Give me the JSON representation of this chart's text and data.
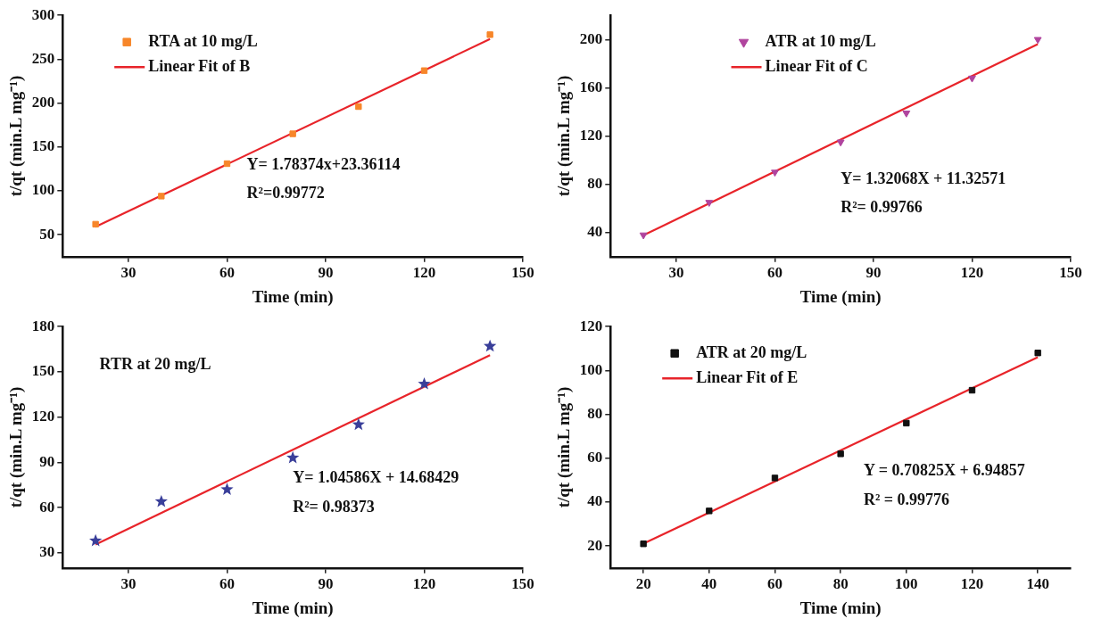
{
  "chart_data": [
    {
      "type": "scatter",
      "xlabel": "Time (min)",
      "ylabel": "t/qt (min.L mg⁻¹)",
      "xlim": [
        10,
        150
      ],
      "xticks": [
        30,
        60,
        90,
        120,
        150
      ],
      "ylim": [
        25,
        300
      ],
      "yticks": [
        50,
        100,
        150,
        200,
        250,
        300
      ],
      "grid": false,
      "legend": "top left",
      "series": [
        {
          "name": "RTA at 10 mg/L",
          "marker": "square",
          "color": "#f7862a",
          "x": [
            20,
            40,
            60,
            80,
            100,
            120,
            140
          ],
          "values": [
            62,
            94,
            131,
            165,
            196,
            237,
            278
          ]
        },
        {
          "name": "Linear Fit of B",
          "type": "line",
          "marker": "none",
          "line_style": "solid",
          "color": "#e8242a",
          "x": [
            20,
            140
          ],
          "values": [
            59,
            273
          ]
        }
      ],
      "annotations": [
        "Y= 1.78374x+23.36114",
        "R²=0.99772"
      ]
    },
    {
      "type": "scatter",
      "xlabel": "Time (min)",
      "ylabel": "t/qt (min.L mg⁻¹)",
      "xlim": [
        10,
        150
      ],
      "xticks": [
        30,
        60,
        90,
        120,
        150
      ],
      "ylim": [
        20,
        220
      ],
      "yticks": [
        40,
        80,
        120,
        160,
        200
      ],
      "grid": false,
      "legend": "top",
      "series": [
        {
          "name": "ATR at 10 mg/L",
          "marker": "triangle",
          "color": "#b0449e",
          "x": [
            20,
            40,
            60,
            80,
            100,
            120,
            140
          ],
          "values": [
            38,
            65,
            90,
            115,
            139,
            168,
            200
          ]
        },
        {
          "name": "Linear Fit of C",
          "type": "line",
          "marker": "none",
          "line_style": "solid",
          "color": "#e8242a",
          "x": [
            20,
            140
          ],
          "values": [
            37.7,
            196.2
          ]
        }
      ],
      "annotations": [
        "Y= 1.32068X + 11.32571",
        "R²= 0.99766"
      ]
    },
    {
      "type": "scatter",
      "xlabel": "Time (min)",
      "ylabel": "t/qt (min.L mg⁻¹)",
      "xlim": [
        10,
        150
      ],
      "xticks": [
        30,
        60,
        90,
        120,
        150
      ],
      "ylim": [
        20,
        180
      ],
      "yticks": [
        30,
        60,
        90,
        120,
        150,
        180
      ],
      "grid": false,
      "series": [
        {
          "marker": "star",
          "color": "#3a3f9a",
          "x": [
            20,
            40,
            60,
            80,
            100,
            120,
            140
          ],
          "values": [
            38,
            64,
            72,
            93,
            115,
            142,
            167
          ]
        },
        {
          "type": "line",
          "marker": "none",
          "line_style": "solid",
          "color": "#e8242a",
          "x": [
            20,
            140
          ],
          "values": [
            35.6,
            161.1
          ]
        }
      ],
      "annotations": [
        "RTR at 20 mg/L",
        "Y= 1.04586X + 14.68429",
        "R²= 0.98373"
      ]
    },
    {
      "type": "scatter",
      "xlabel": "Time (min)",
      "ylabel": "t/qt (min.L mg⁻¹)",
      "xlim": [
        10,
        150
      ],
      "xticks": [
        20,
        40,
        60,
        80,
        100,
        120,
        140
      ],
      "ylim": [
        10,
        120
      ],
      "yticks": [
        20,
        40,
        60,
        80,
        100,
        120
      ],
      "grid": false,
      "legend": "top left",
      "series": [
        {
          "name": "ATR at 20 mg/L",
          "marker": "square",
          "color": "#111111",
          "x": [
            20,
            40,
            60,
            80,
            100,
            120,
            140
          ],
          "values": [
            21,
            36,
            51,
            62,
            76,
            91,
            108
          ]
        },
        {
          "name": "Linear Fit of E",
          "type": "line",
          "marker": "none",
          "line_style": "solid",
          "color": "#e8242a",
          "x": [
            20,
            140
          ],
          "values": [
            21.1,
            106.1
          ]
        }
      ],
      "annotations": [
        "Y = 0.70825X + 6.94857",
        "R² = 0.99776"
      ]
    }
  ]
}
